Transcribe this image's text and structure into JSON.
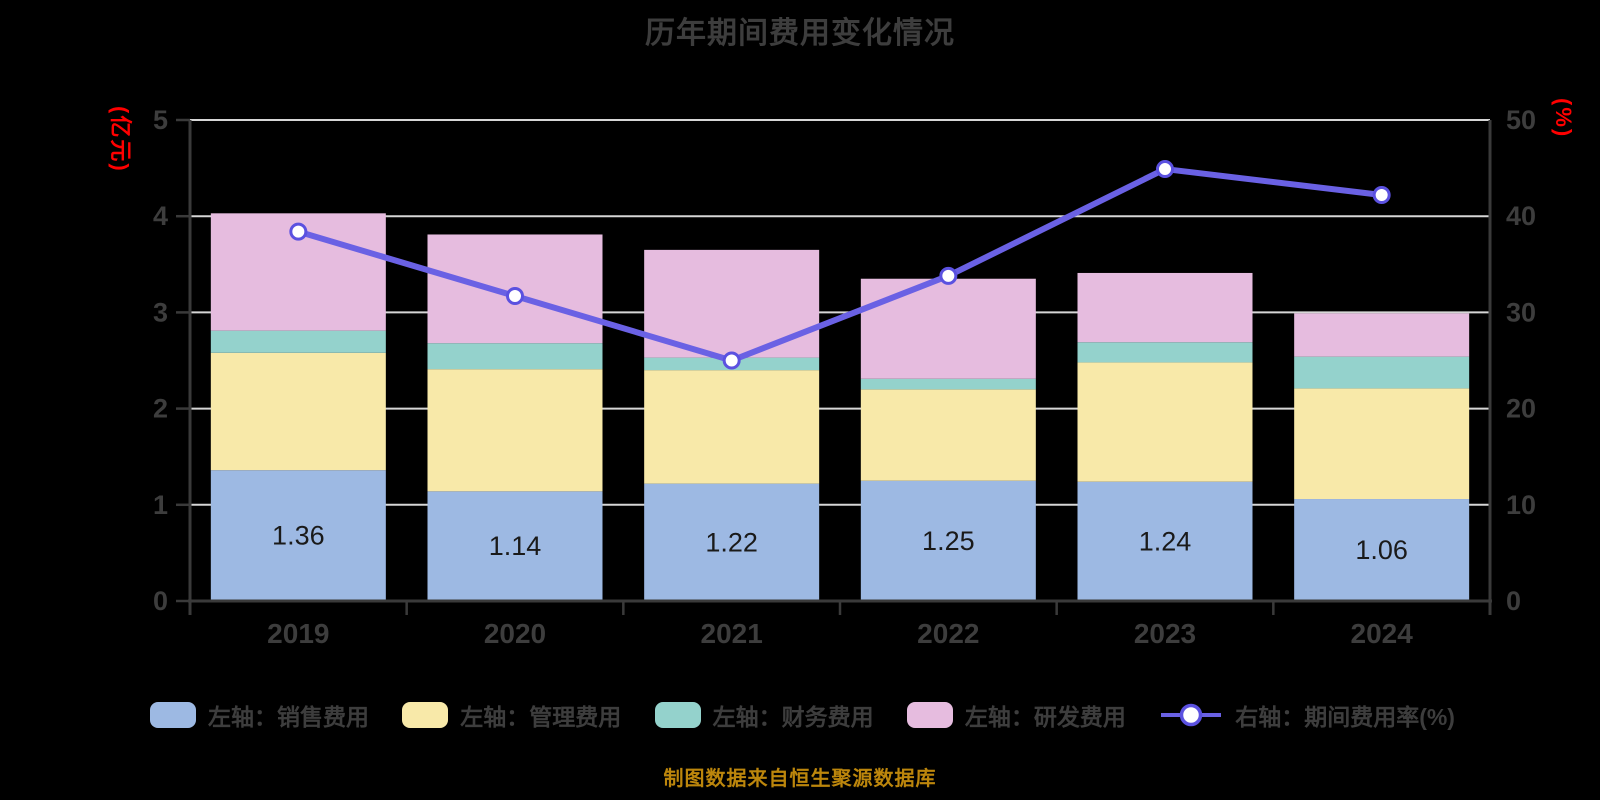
{
  "title": {
    "text": "历年期间费用变化情况"
  },
  "footer": {
    "text": "制图数据来自恒生聚源数据库"
  },
  "left_axis": {
    "unit": "(亿元)",
    "ticks": [
      0,
      1,
      2,
      3,
      4,
      5
    ],
    "max": 5,
    "unit_color": "#ff0000"
  },
  "right_axis": {
    "unit": "(%)",
    "ticks": [
      0,
      10,
      20,
      30,
      40,
      50
    ],
    "max": 50,
    "unit_color": "#ff0000"
  },
  "colors": {
    "background": "#000000",
    "gridline": "#d6d6d6",
    "axis": "#3a3a3a",
    "text": "#3d3d3d",
    "bar_value_text": "#1a1a1a",
    "line": "#6a61e4",
    "marker_ring": "#5b51e0",
    "marker_fill": "#ffffff"
  },
  "chart_data": {
    "type": "bar",
    "subtype": "stacked-bars-with-line",
    "categories": [
      "2019",
      "2020",
      "2021",
      "2022",
      "2023",
      "2024"
    ],
    "series": [
      {
        "key": "sales",
        "name": "左轴：销售费用",
        "axis": "left",
        "color": "#9db9e3",
        "values": [
          1.36,
          1.14,
          1.22,
          1.25,
          1.24,
          1.06
        ]
      },
      {
        "key": "admin",
        "name": "左轴：管理费用",
        "axis": "left",
        "color": "#f8e9a9",
        "values": [
          1.22,
          1.27,
          1.18,
          0.95,
          1.24,
          1.15
        ]
      },
      {
        "key": "finance",
        "name": "左轴：财务费用",
        "axis": "left",
        "color": "#94d2cc",
        "values": [
          0.23,
          0.27,
          0.13,
          0.11,
          0.21,
          0.33
        ]
      },
      {
        "key": "rd",
        "name": "左轴：研发费用",
        "axis": "left",
        "color": "#e6bcdf",
        "values": [
          1.22,
          1.13,
          1.12,
          1.04,
          0.72,
          0.45
        ]
      }
    ],
    "line_series": {
      "key": "expense-rate",
      "name": "右轴：期间费用率(%)",
      "axis": "right",
      "color": "#6a61e4",
      "values": [
        38.4,
        31.7,
        25.0,
        33.8,
        44.9,
        42.2
      ]
    },
    "bar_labels": [
      "1.36",
      "1.14",
      "1.22",
      "1.25",
      "1.24",
      "1.06"
    ],
    "left_ylim": [
      0,
      5
    ],
    "right_ylim": [
      0,
      50
    ],
    "grid": true,
    "legend_position": "bottom",
    "title": "历年期间费用变化情况",
    "xlabel": "",
    "ylabel_left": "(亿元)",
    "ylabel_right": "(%)"
  }
}
